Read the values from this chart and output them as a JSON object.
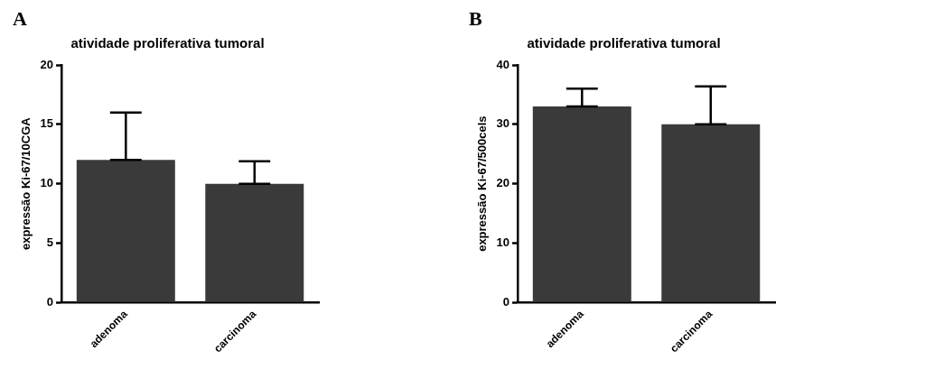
{
  "chart_data": [
    {
      "type": "bar",
      "annotations": [
        "A"
      ],
      "title": "atividade proliferativa tumoral",
      "ylabel": "expressão Ki-67/10CGA",
      "categories": [
        "adenoma",
        "carcinoma"
      ],
      "values": [
        12,
        10
      ],
      "errors": [
        [
          12,
          16
        ],
        [
          10,
          11.9
        ]
      ],
      "color": "#3a3a3a",
      "ylim": [
        0,
        20
      ],
      "yticks": [
        0,
        5,
        10,
        15,
        20
      ],
      "grid": false,
      "legend": false
    },
    {
      "type": "bar",
      "annotations": [
        "B"
      ],
      "title": "atividade proliferativa tumoral",
      "ylabel": "expressão Ki-67/500cels",
      "categories": [
        "adenoma",
        "carcinoma"
      ],
      "values": [
        33,
        30
      ],
      "errors": [
        [
          33,
          36
        ],
        [
          30,
          36.4
        ]
      ],
      "color": "#3a3a3a",
      "ylim": [
        0,
        40
      ],
      "yticks": [
        0,
        10,
        20,
        30,
        40
      ],
      "grid": false,
      "legend": false
    }
  ]
}
